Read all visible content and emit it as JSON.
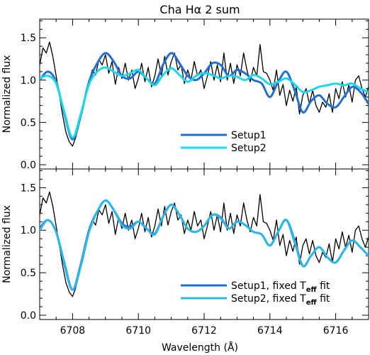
{
  "title": "Cha Hα 2 sum",
  "xlabel": "Wavelength (Å)",
  "colors": {
    "data": "#000000",
    "setup1": "#1f6fd6",
    "setup2": "#1ad8e8",
    "setup2_bottom": "#2ab8e8"
  },
  "chart_data": [
    {
      "type": "line",
      "panel": "top",
      "title": "Cha Hα 2 sum",
      "xlabel": "",
      "ylabel": "Normalized flux",
      "xlim": [
        6707.0,
        6717.0
      ],
      "ylim": [
        -0.05,
        1.72
      ],
      "xticks": [
        6708,
        6710,
        6712,
        6714,
        6716
      ],
      "yticks": [
        0.0,
        0.5,
        1.0,
        1.5
      ],
      "ytick_labels": [
        "0.0",
        "0.5",
        "1.0",
        "1.5"
      ],
      "legend_position": "bottom-right",
      "series": [
        {
          "name": "",
          "role": "observed",
          "color": "#000000",
          "x": [
            6707.0,
            6707.1,
            6707.2,
            6707.3,
            6707.4,
            6707.5,
            6707.6,
            6707.7,
            6707.8,
            6707.9,
            6708.0,
            6708.1,
            6708.2,
            6708.3,
            6708.4,
            6708.5,
            6708.6,
            6708.7,
            6708.8,
            6708.9,
            6709.0,
            6709.1,
            6709.2,
            6709.3,
            6709.4,
            6709.5,
            6709.6,
            6709.7,
            6709.8,
            6709.9,
            6710.0,
            6710.1,
            6710.2,
            6710.3,
            6710.4,
            6710.5,
            6710.6,
            6710.7,
            6710.8,
            6710.9,
            6711.0,
            6711.1,
            6711.2,
            6711.3,
            6711.4,
            6711.5,
            6711.6,
            6711.7,
            6711.8,
            6711.9,
            6712.0,
            6712.1,
            6712.2,
            6712.3,
            6712.4,
            6712.5,
            6712.6,
            6712.7,
            6712.8,
            6712.9,
            6713.0,
            6713.1,
            6713.2,
            6713.3,
            6713.4,
            6713.5,
            6713.6,
            6713.7,
            6713.8,
            6713.9,
            6714.0,
            6714.1,
            6714.2,
            6714.3,
            6714.4,
            6714.5,
            6714.6,
            6714.7,
            6714.8,
            6714.9,
            6715.0,
            6715.1,
            6715.2,
            6715.3,
            6715.4,
            6715.5,
            6715.6,
            6715.7,
            6715.8,
            6715.9,
            6716.0,
            6716.1,
            6716.2,
            6716.3,
            6716.4,
            6716.5,
            6716.6,
            6716.7,
            6716.8,
            6716.9,
            6717.0
          ],
          "y": [
            1.18,
            1.38,
            1.32,
            1.45,
            1.28,
            1.05,
            0.82,
            0.58,
            0.38,
            0.27,
            0.22,
            0.33,
            0.48,
            0.66,
            0.86,
            0.98,
            1.12,
            1.06,
            1.24,
            1.18,
            1.3,
            1.08,
            1.22,
            0.95,
            1.15,
            1.02,
            1.2,
            1.0,
            1.12,
            0.9,
            1.02,
            1.2,
            0.98,
            1.15,
            0.92,
            1.05,
            1.25,
            1.05,
            1.28,
            1.06,
            1.22,
            1.32,
            1.12,
            1.18,
            0.96,
            1.12,
            1.0,
            1.22,
            1.05,
            1.12,
            0.9,
            1.05,
            1.22,
            1.0,
            1.18,
            0.98,
            1.32,
            1.0,
            1.2,
            0.96,
            1.18,
            1.05,
            1.32,
            1.12,
            0.98,
            1.15,
            1.05,
            1.42,
            1.1,
            1.08,
            1.0,
            0.88,
            1.12,
            0.82,
            0.95,
            0.7,
            0.88,
            0.75,
            0.92,
            0.6,
            0.82,
            0.9,
            0.72,
            0.88,
            0.7,
            0.62,
            0.74,
            0.68,
            0.84,
            0.62,
            0.9,
            0.78,
            0.98,
            0.8,
            0.94,
            0.74,
            1.0,
            1.05,
            0.9,
            0.8,
            0.92
          ]
        },
        {
          "name": "Setup1",
          "color": "#1f6fd6",
          "x": [
            6707.0,
            6707.25,
            6707.5,
            6707.75,
            6708.0,
            6708.25,
            6708.5,
            6708.75,
            6709.0,
            6709.25,
            6709.5,
            6709.75,
            6710.0,
            6710.25,
            6710.5,
            6710.75,
            6711.0,
            6711.25,
            6711.5,
            6711.75,
            6712.0,
            6712.25,
            6712.5,
            6712.75,
            6713.0,
            6713.25,
            6713.5,
            6713.75,
            6714.0,
            6714.25,
            6714.5,
            6714.75,
            6715.0,
            6715.25,
            6715.5,
            6715.75,
            6716.0,
            6716.25,
            6716.5,
            6716.75,
            6717.0
          ],
          "y": [
            1.0,
            1.1,
            0.98,
            0.6,
            0.3,
            0.58,
            0.98,
            1.2,
            1.32,
            1.22,
            1.05,
            1.02,
            1.1,
            1.02,
            0.96,
            1.18,
            1.32,
            1.2,
            1.05,
            1.0,
            1.08,
            1.2,
            1.18,
            1.05,
            1.12,
            1.08,
            1.0,
            0.96,
            0.8,
            0.98,
            1.1,
            0.88,
            0.62,
            0.75,
            0.82,
            0.72,
            0.68,
            0.8,
            0.92,
            0.86,
            0.72
          ]
        },
        {
          "name": "Setup2",
          "color": "#1ad8e8",
          "x": [
            6707.0,
            6707.25,
            6707.5,
            6707.75,
            6708.0,
            6708.25,
            6708.5,
            6708.75,
            6709.0,
            6709.25,
            6709.5,
            6709.75,
            6710.0,
            6710.25,
            6710.5,
            6710.75,
            6711.0,
            6711.25,
            6711.5,
            6711.75,
            6712.0,
            6712.25,
            6712.5,
            6712.75,
            6713.0,
            6713.25,
            6713.5,
            6713.75,
            6714.0,
            6714.25,
            6714.5,
            6714.75,
            6715.0,
            6715.25,
            6715.5,
            6715.75,
            6716.0,
            6716.25,
            6716.5,
            6716.75,
            6717.0
          ],
          "y": [
            1.02,
            1.05,
            0.96,
            0.62,
            0.32,
            0.6,
            0.95,
            1.1,
            1.15,
            1.1,
            1.05,
            1.08,
            1.12,
            1.02,
            0.94,
            1.06,
            1.14,
            1.06,
            0.98,
            1.05,
            1.08,
            1.06,
            1.02,
            1.05,
            1.04,
            1.0,
            1.06,
            1.02,
            0.95,
            0.98,
            1.02,
            0.95,
            0.86,
            0.88,
            0.92,
            0.94,
            0.96,
            0.94,
            0.96,
            0.9,
            0.86
          ]
        }
      ]
    },
    {
      "type": "line",
      "panel": "bottom",
      "title": "",
      "xlabel": "Wavelength (Å)",
      "ylabel": "Normalized flux",
      "xlim": [
        6707.0,
        6717.0
      ],
      "ylim": [
        -0.05,
        1.72
      ],
      "xticks": [
        6708,
        6710,
        6712,
        6714,
        6716
      ],
      "yticks": [
        0.0,
        0.5,
        1.0,
        1.5
      ],
      "ytick_labels": [
        "0.0",
        "0.5",
        "1.0",
        "1.5"
      ],
      "legend_position": "bottom-right",
      "series": [
        {
          "name": "",
          "role": "observed",
          "color": "#000000",
          "x": [
            6707.0,
            6707.1,
            6707.2,
            6707.3,
            6707.4,
            6707.5,
            6707.6,
            6707.7,
            6707.8,
            6707.9,
            6708.0,
            6708.1,
            6708.2,
            6708.3,
            6708.4,
            6708.5,
            6708.6,
            6708.7,
            6708.8,
            6708.9,
            6709.0,
            6709.1,
            6709.2,
            6709.3,
            6709.4,
            6709.5,
            6709.6,
            6709.7,
            6709.8,
            6709.9,
            6710.0,
            6710.1,
            6710.2,
            6710.3,
            6710.4,
            6710.5,
            6710.6,
            6710.7,
            6710.8,
            6710.9,
            6711.0,
            6711.1,
            6711.2,
            6711.3,
            6711.4,
            6711.5,
            6711.6,
            6711.7,
            6711.8,
            6711.9,
            6712.0,
            6712.1,
            6712.2,
            6712.3,
            6712.4,
            6712.5,
            6712.6,
            6712.7,
            6712.8,
            6712.9,
            6713.0,
            6713.1,
            6713.2,
            6713.3,
            6713.4,
            6713.5,
            6713.6,
            6713.7,
            6713.8,
            6713.9,
            6714.0,
            6714.1,
            6714.2,
            6714.3,
            6714.4,
            6714.5,
            6714.6,
            6714.7,
            6714.8,
            6714.9,
            6715.0,
            6715.1,
            6715.2,
            6715.3,
            6715.4,
            6715.5,
            6715.6,
            6715.7,
            6715.8,
            6715.9,
            6716.0,
            6716.1,
            6716.2,
            6716.3,
            6716.4,
            6716.5,
            6716.6,
            6716.7,
            6716.8,
            6716.9,
            6717.0
          ],
          "y": [
            1.18,
            1.38,
            1.32,
            1.45,
            1.28,
            1.05,
            0.82,
            0.58,
            0.38,
            0.27,
            0.22,
            0.33,
            0.48,
            0.66,
            0.86,
            0.98,
            1.12,
            1.06,
            1.24,
            1.18,
            1.3,
            1.08,
            1.22,
            0.95,
            1.15,
            1.02,
            1.2,
            1.0,
            1.12,
            0.9,
            1.02,
            1.2,
            0.98,
            1.15,
            0.92,
            1.05,
            1.25,
            1.05,
            1.28,
            1.06,
            1.22,
            1.32,
            1.12,
            1.18,
            0.96,
            1.12,
            1.0,
            1.22,
            1.05,
            1.12,
            0.9,
            1.05,
            1.22,
            1.0,
            1.18,
            0.98,
            1.32,
            1.0,
            1.2,
            0.96,
            1.18,
            1.05,
            1.32,
            1.12,
            0.98,
            1.15,
            1.05,
            1.42,
            1.1,
            1.08,
            1.0,
            0.88,
            1.12,
            0.82,
            0.95,
            0.7,
            0.88,
            0.75,
            0.92,
            0.6,
            0.82,
            0.9,
            0.72,
            0.88,
            0.7,
            0.62,
            0.74,
            0.68,
            0.84,
            0.62,
            0.9,
            0.78,
            0.98,
            0.8,
            0.94,
            0.74,
            1.0,
            1.05,
            0.9,
            0.8,
            0.92
          ]
        },
        {
          "name": "Setup1, fixed T_eff fit",
          "color": "#1f6fd6",
          "x": [
            6707.0,
            6707.25,
            6707.5,
            6707.75,
            6708.0,
            6708.25,
            6708.5,
            6708.75,
            6709.0,
            6709.25,
            6709.5,
            6709.75,
            6710.0,
            6710.25,
            6710.5,
            6710.75,
            6711.0,
            6711.25,
            6711.5,
            6711.75,
            6712.0,
            6712.25,
            6712.5,
            6712.75,
            6713.0,
            6713.25,
            6713.5,
            6713.75,
            6714.0,
            6714.25,
            6714.5,
            6714.75,
            6715.0,
            6715.25,
            6715.5,
            6715.75,
            6716.0,
            6716.25,
            6716.5,
            6716.75,
            6717.0
          ],
          "y": [
            1.02,
            1.12,
            0.98,
            0.6,
            0.3,
            0.6,
            1.0,
            1.22,
            1.35,
            1.24,
            1.08,
            1.04,
            1.1,
            1.02,
            0.96,
            1.16,
            1.3,
            1.18,
            1.02,
            0.98,
            1.05,
            1.18,
            1.15,
            1.02,
            1.1,
            1.06,
            0.98,
            0.95,
            0.82,
            0.98,
            1.12,
            0.88,
            0.58,
            0.7,
            0.8,
            0.68,
            0.62,
            0.76,
            0.88,
            0.8,
            0.7
          ]
        },
        {
          "name": "Setup2, fixed T_eff fit",
          "color": "#2ab8e8",
          "x": [
            6707.0,
            6707.25,
            6707.5,
            6707.75,
            6708.0,
            6708.25,
            6708.5,
            6708.75,
            6709.0,
            6709.25,
            6709.5,
            6709.75,
            6710.0,
            6710.25,
            6710.5,
            6710.75,
            6711.0,
            6711.25,
            6711.5,
            6711.75,
            6712.0,
            6712.25,
            6712.5,
            6712.75,
            6713.0,
            6713.25,
            6713.5,
            6713.75,
            6714.0,
            6714.25,
            6714.5,
            6714.75,
            6715.0,
            6715.25,
            6715.5,
            6715.75,
            6716.0,
            6716.25,
            6716.5,
            6716.75,
            6717.0
          ],
          "y": [
            1.0,
            1.12,
            0.98,
            0.62,
            0.3,
            0.58,
            0.98,
            1.22,
            1.35,
            1.24,
            1.06,
            1.02,
            1.1,
            1.02,
            0.95,
            1.16,
            1.3,
            1.18,
            1.02,
            0.98,
            1.05,
            1.18,
            1.14,
            1.02,
            1.1,
            1.06,
            0.98,
            0.95,
            0.82,
            0.98,
            1.12,
            0.86,
            0.58,
            0.7,
            0.8,
            0.68,
            0.62,
            0.76,
            0.88,
            0.8,
            0.7
          ]
        }
      ]
    }
  ]
}
